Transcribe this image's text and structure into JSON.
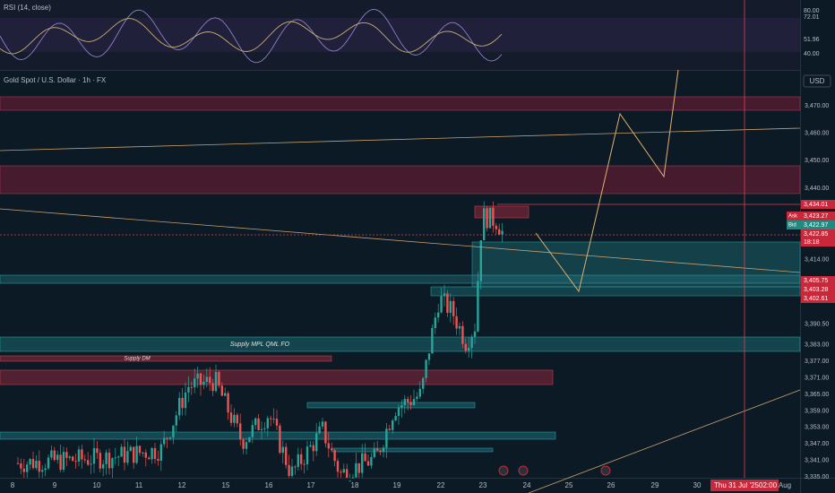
{
  "header": {
    "symbol": "Gold Spot / U.S. Dollar · 1h · FX",
    "currency": "USD"
  },
  "rsi": {
    "title": "RSI (14, close)",
    "labels": [
      "80.00",
      "72.01",
      "51.96",
      "40.00"
    ]
  },
  "price_axis": {
    "ticks": [
      "3,470.00",
      "3,460.00",
      "3,450.00",
      "3,440.00",
      "3,414.00",
      "3,390.50",
      "3,383.00",
      "3,377.00",
      "3,371.00",
      "3,365.00",
      "3,359.00",
      "3,353.00",
      "3,347.00",
      "3,341.00",
      "3,335.00"
    ]
  },
  "price_tags": [
    {
      "label": "3,434.01",
      "kind": "red"
    },
    {
      "label": "3,423.27",
      "tag": "Ask",
      "kind": "red"
    },
    {
      "label": "3,422.97",
      "tag": "Bid",
      "kind": "teal"
    },
    {
      "label": "3,422.85",
      "kind": "red"
    },
    {
      "label": "18:18",
      "kind": "red"
    },
    {
      "label": "3,405.75",
      "kind": "red"
    },
    {
      "label": "3,403.28",
      "kind": "red"
    },
    {
      "label": "3,402.61",
      "kind": "red"
    }
  ],
  "time_axis": {
    "labels": [
      "8",
      "9",
      "10",
      "11",
      "12",
      "15",
      "16",
      "17",
      "18",
      "19",
      "22",
      "23",
      "24",
      "25",
      "26",
      "29",
      "30"
    ],
    "cursor_date": "Thu 31 Jul '25",
    "cursor_time": "02:00",
    "next": "Aug"
  },
  "zones": [
    "Supply MPL QML FO",
    "Supply DM"
  ]
}
